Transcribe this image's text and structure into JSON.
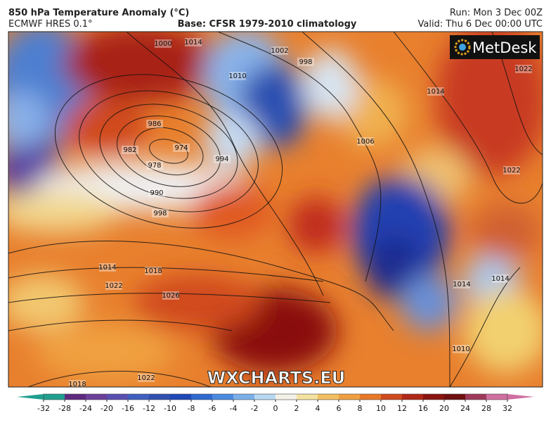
{
  "header": {
    "title": "850 hPa Temperature Anomaly (°C)",
    "model": "ECMWF HRES 0.1°",
    "base": "Base: CFSR 1979-2010 climatology",
    "run": "Run: Mon 3 Dec 00Z",
    "valid": "Valid: Thu 6 Dec 00:00 UTC"
  },
  "logo": "MetDesk",
  "watermark": "WXCHARTS.EU",
  "isobar_labels": [
    "1000",
    "1014",
    "1002",
    "998",
    "1010",
    "986",
    "974",
    "978",
    "982",
    "990",
    "998",
    "994",
    "1006",
    "1022",
    "1014",
    "1018",
    "1022",
    "1026",
    "1018",
    "1022",
    "1014",
    "1014",
    "1010",
    "1022",
    "1014"
  ],
  "colorbar": {
    "ticks": [
      -32,
      -28,
      -24,
      -20,
      -16,
      -12,
      -10,
      -8,
      -6,
      -4,
      -2,
      0,
      2,
      4,
      6,
      8,
      10,
      12,
      16,
      20,
      24,
      28,
      32
    ],
    "colors": [
      "#1f9f8f",
      "#5e2a7e",
      "#6b3f9a",
      "#5a4fb0",
      "#3f5fc0",
      "#2f50b0",
      "#1f48b8",
      "#2f6ad0",
      "#4a8ae0",
      "#7ab0ea",
      "#b8d8f2",
      "#f4f2e8",
      "#f4e2a0",
      "#f2c060",
      "#f0a040",
      "#e87828",
      "#d04a1e",
      "#b02818",
      "#8a1410",
      "#701010",
      "#a03a5a",
      "#d070a0"
    ]
  }
}
